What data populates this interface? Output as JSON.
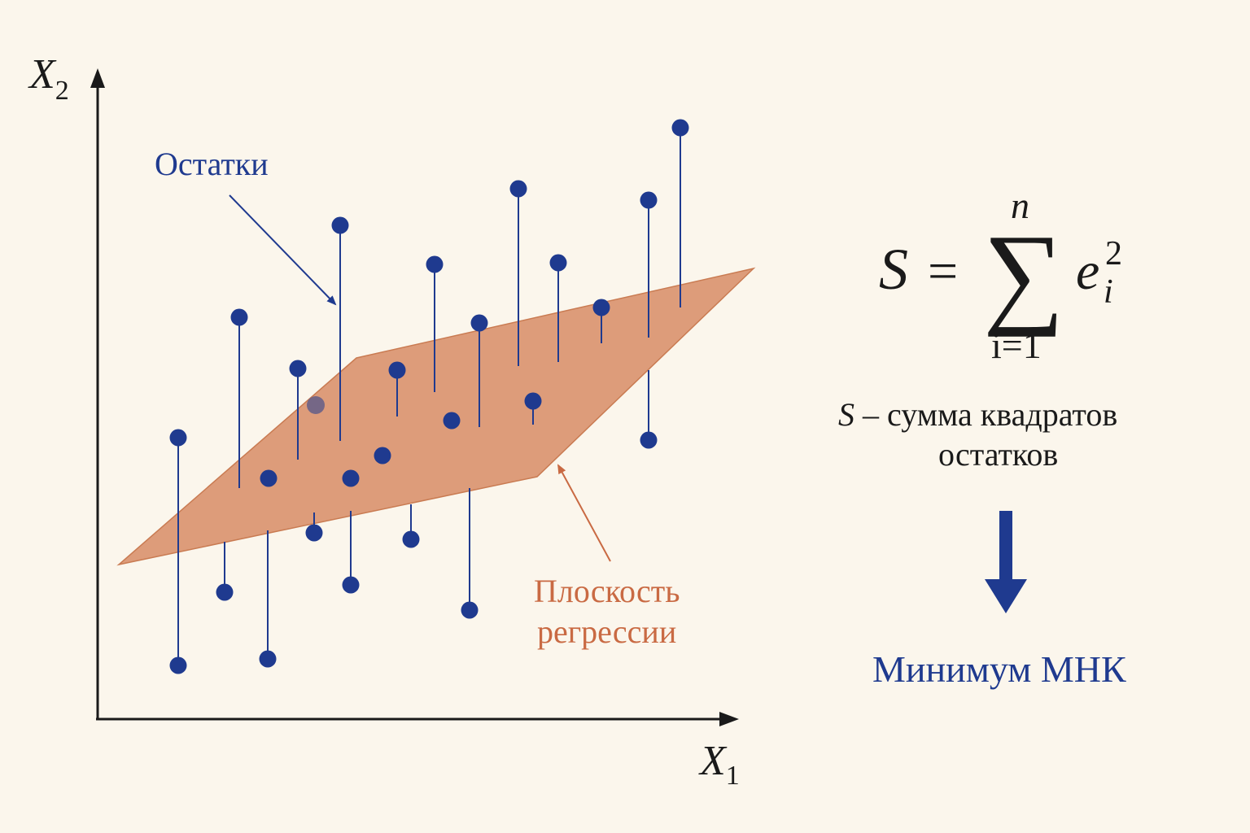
{
  "axes": {
    "y_label": "X",
    "y_subscript": "2",
    "x_label": "X",
    "x_subscript": "1"
  },
  "labels": {
    "residuals": "Остатки",
    "plane_line1": "Плоскость",
    "plane_line2": "регрессии"
  },
  "formula": {
    "lhs": "S",
    "equals": "=",
    "sum_symbol": "∑",
    "upper_limit": "n",
    "lower_limit": "i=1",
    "term": "e",
    "term_subscript": "i",
    "term_superscript": "2"
  },
  "description": {
    "symbol": "S",
    "line1_rest": " – сумма квадратов",
    "line2": "остатков"
  },
  "result": "Минимум МНК",
  "colors": {
    "background": "#fbf6ec",
    "points": "#1f3a8f",
    "plane_fill": "#d8906a",
    "plane_label": "#c96a43",
    "axes": "#1a1a1a"
  }
}
